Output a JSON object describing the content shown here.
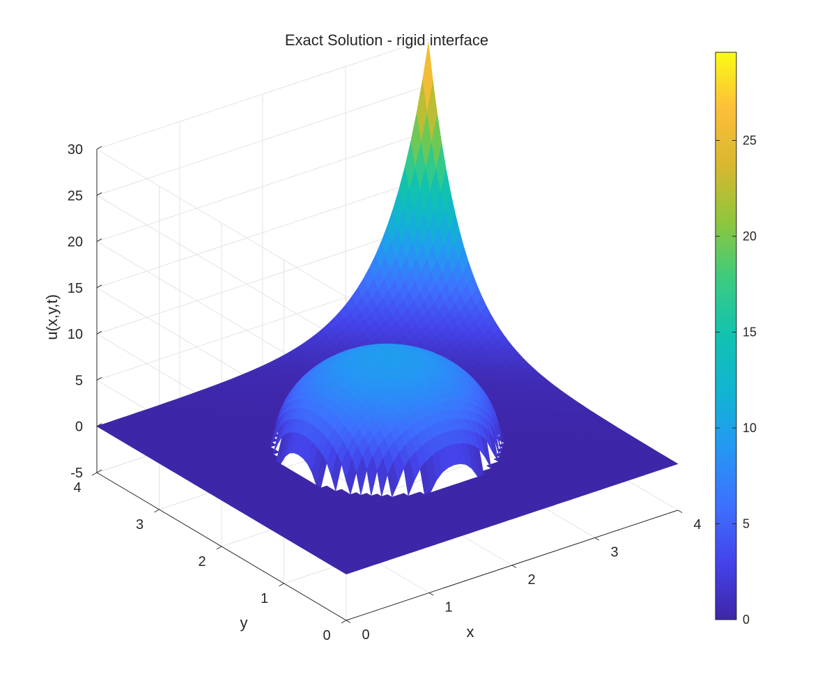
{
  "chart_data": {
    "type": "surface",
    "title": "Exact Solution - rigid interface",
    "xlabel": "x",
    "ylabel": "y",
    "zlabel": "u(x,y,t)",
    "xlim": [
      0,
      4
    ],
    "ylim": [
      0,
      4
    ],
    "zlim": [
      -5,
      30
    ],
    "x_ticks": [
      "0",
      "1",
      "2",
      "3",
      "4"
    ],
    "y_ticks": [
      "0",
      "1",
      "2",
      "3",
      "4"
    ],
    "z_ticks": [
      "-5",
      "0",
      "5",
      "10",
      "15",
      "20",
      "25",
      "30"
    ],
    "grid": true,
    "colormap": "parula",
    "colorbar": {
      "range": [
        0,
        29.6
      ],
      "ticks": [
        "0",
        "5",
        "10",
        "15",
        "20",
        "25"
      ]
    },
    "surface": {
      "corner_values": [
        {
          "x": 0,
          "y": 0,
          "u": 0
        },
        {
          "x": 4,
          "y": 0,
          "u": 0
        },
        {
          "x": 0,
          "y": 4,
          "u": 0
        },
        {
          "x": 4,
          "y": 4,
          "u": 29.6
        }
      ],
      "interface": {
        "shape": "circle",
        "center": [
          2,
          2
        ],
        "radius": 1.1,
        "inner_min": 0,
        "inner_max": 9.5
      }
    }
  }
}
